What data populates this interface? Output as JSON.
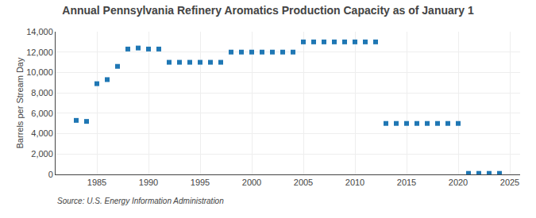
{
  "chart_data": {
    "type": "scatter",
    "title": "Annual Pennsylvania Refinery Aromatics Production Capacity as of January 1",
    "ylabel": "Barrels per Stream Day",
    "annotations": [
      "Source: U.S. Energy Information Administration"
    ],
    "marker": "square",
    "grid": true,
    "xlim": [
      1981,
      2026
    ],
    "ylim": [
      0,
      14000
    ],
    "xticks": [
      1985,
      1990,
      1995,
      2000,
      2005,
      2010,
      2015,
      2020,
      2025
    ],
    "yticks": [
      0,
      {
        "value": 2000,
        "label": "2,000"
      },
      {
        "value": 4000,
        "label": "4,000"
      },
      {
        "value": 6000,
        "label": "6,000"
      },
      {
        "value": 8000,
        "label": "8,000"
      },
      {
        "value": 10000,
        "label": "10,000"
      },
      {
        "value": 12000,
        "label": "12,000"
      },
      {
        "value": 14000,
        "label": "14,000"
      }
    ],
    "x": [
      1983,
      1984,
      1985,
      1986,
      1987,
      1988,
      1989,
      1990,
      1991,
      1992,
      1993,
      1994,
      1995,
      1996,
      1997,
      1998,
      1999,
      2000,
      2001,
      2002,
      2003,
      2004,
      2005,
      2006,
      2007,
      2008,
      2009,
      2010,
      2011,
      2012,
      2013,
      2014,
      2015,
      2016,
      2017,
      2018,
      2019,
      2020,
      2021,
      2022,
      2023,
      2024
    ],
    "values": [
      5300,
      5200,
      8900,
      9300,
      10600,
      12300,
      12400,
      12300,
      12300,
      11000,
      11000,
      11000,
      11000,
      11000,
      11000,
      12000,
      12000,
      12000,
      12000,
      12000,
      12000,
      12000,
      13000,
      13000,
      13000,
      13000,
      13000,
      13000,
      13000,
      13000,
      5000,
      5000,
      5000,
      5000,
      5000,
      5000,
      5000,
      5000,
      100,
      100,
      100,
      100
    ]
  }
}
